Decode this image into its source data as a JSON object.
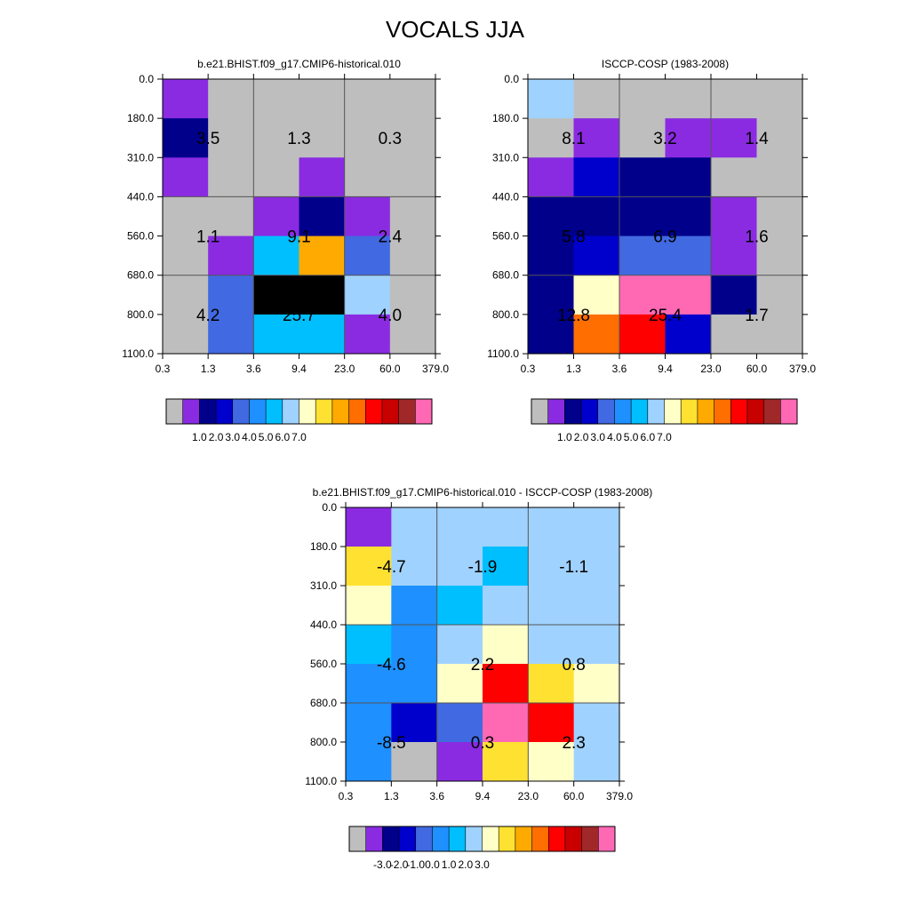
{
  "title": "VOCALS JJA",
  "chart_data": [
    {
      "type": "heatmap",
      "title": "b.e21.BHIST.f09_g17.CMIP6-historical.010",
      "x_tick_labels": [
        "0.3",
        "1.3",
        "3.6",
        "9.4",
        "23.0",
        "60.0",
        "379.0"
      ],
      "y_tick_labels": [
        "0.0",
        "180.0",
        "310.0",
        "440.0",
        "560.0",
        "680.0",
        "800.0",
        "1100.0"
      ],
      "cell_level_index": [
        [
          1,
          0,
          0,
          0,
          0,
          0
        ],
        [
          2,
          0,
          0,
          0,
          0,
          0
        ],
        [
          1,
          0,
          0,
          1,
          0,
          0
        ],
        [
          0,
          0,
          1,
          2,
          1,
          0
        ],
        [
          0,
          1,
          6,
          10,
          4,
          0
        ],
        [
          0,
          4,
          16,
          16,
          7,
          0
        ],
        [
          0,
          4,
          6,
          6,
          1,
          0
        ]
      ],
      "grouped_values": [
        [
          3.5,
          1.3,
          0.3
        ],
        [
          1.1,
          9.1,
          2.4
        ],
        [
          4.2,
          25.7,
          4.0
        ]
      ],
      "colorbar": {
        "colors": [
          "#bebebe",
          "#8a2be2",
          "#00008b",
          "#0000cd",
          "#4169e1",
          "#1e90ff",
          "#00bfff",
          "#a0d2ff",
          "#ffffc8",
          "#ffe132",
          "#ffaa00",
          "#ff6e00",
          "#ff0000",
          "#c80000",
          "#a02828",
          "#ff69b4"
        ],
        "tick_labels": [
          "1.0",
          "2.0",
          "3.0",
          "4.0",
          "5.0",
          "6.0",
          "7.0"
        ]
      }
    },
    {
      "type": "heatmap",
      "title": "ISCCP-COSP (1983-2008)",
      "x_tick_labels": [
        "0.3",
        "1.3",
        "3.6",
        "9.4",
        "23.0",
        "60.0",
        "379.0"
      ],
      "y_tick_labels": [
        "0.0",
        "180.0",
        "310.0",
        "440.0",
        "560.0",
        "680.0",
        "800.0",
        "1100.0"
      ],
      "cell_level_index": [
        [
          7,
          0,
          0,
          0,
          0,
          0
        ],
        [
          0,
          1,
          0,
          1,
          1,
          0
        ],
        [
          1,
          3,
          2,
          2,
          0,
          0
        ],
        [
          2,
          2,
          2,
          2,
          1,
          0
        ],
        [
          2,
          3,
          4,
          4,
          1,
          0
        ],
        [
          2,
          8,
          15,
          15,
          2,
          0
        ],
        [
          2,
          11,
          12,
          3,
          0,
          0
        ]
      ],
      "grouped_values": [
        [
          8.1,
          3.2,
          1.4
        ],
        [
          5.8,
          6.9,
          1.6
        ],
        [
          12.8,
          25.4,
          1.7
        ]
      ],
      "colorbar": {
        "colors": [
          "#bebebe",
          "#8a2be2",
          "#00008b",
          "#0000cd",
          "#4169e1",
          "#1e90ff",
          "#00bfff",
          "#a0d2ff",
          "#ffffc8",
          "#ffe132",
          "#ffaa00",
          "#ff6e00",
          "#ff0000",
          "#c80000",
          "#a02828",
          "#ff69b4"
        ],
        "tick_labels": [
          "1.0",
          "2.0",
          "3.0",
          "4.0",
          "5.0",
          "6.0",
          "7.0"
        ]
      }
    },
    {
      "type": "heatmap",
      "title": "b.e21.BHIST.f09_g17.CMIP6-historical.010 - ISCCP-COSP (1983-2008)",
      "x_tick_labels": [
        "0.3",
        "1.3",
        "3.6",
        "9.4",
        "23.0",
        "60.0",
        "379.0"
      ],
      "y_tick_labels": [
        "0.0",
        "180.0",
        "310.0",
        "440.0",
        "560.0",
        "680.0",
        "800.0",
        "1100.0"
      ],
      "cell_level_index": [
        [
          1,
          7,
          7,
          7,
          7,
          7
        ],
        [
          9,
          7,
          7,
          6,
          7,
          7
        ],
        [
          8,
          5,
          6,
          7,
          7,
          7
        ],
        [
          6,
          5,
          7,
          8,
          7,
          7
        ],
        [
          5,
          5,
          8,
          12,
          9,
          8
        ],
        [
          5,
          3,
          4,
          15,
          12,
          7
        ],
        [
          5,
          0,
          1,
          9,
          8,
          7
        ]
      ],
      "grouped_values": [
        [
          -4.7,
          -1.9,
          -1.1
        ],
        [
          -4.6,
          2.2,
          0.8
        ],
        [
          -8.5,
          0.3,
          2.3
        ]
      ],
      "colorbar": {
        "colors": [
          "#bebebe",
          "#8a2be2",
          "#00008b",
          "#0000cd",
          "#4169e1",
          "#1e90ff",
          "#00bfff",
          "#a0d2ff",
          "#ffffc8",
          "#ffe132",
          "#ffaa00",
          "#ff6e00",
          "#ff0000",
          "#c80000",
          "#a02828",
          "#ff69b4"
        ],
        "tick_labels": [
          "-3.0",
          "-2.0",
          "-1.0",
          "0.0",
          "1.0",
          "2.0",
          "3.0"
        ]
      }
    }
  ]
}
